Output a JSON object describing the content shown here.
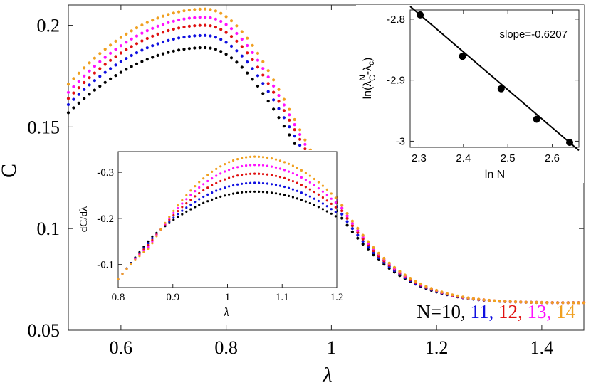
{
  "colors": {
    "N10": "#000000",
    "N11": "#1010e0",
    "N12": "#e01010",
    "N13": "#ff10ff",
    "N14": "#f0a020"
  },
  "chart_data": [
    {
      "id": "main",
      "type": "scatter",
      "xlabel": "λ",
      "ylabel": "C",
      "xlim": [
        0.5,
        1.48
      ],
      "ylim": [
        0.05,
        0.21
      ],
      "xticks": [
        0.6,
        0.8,
        1,
        1.2,
        1.4
      ],
      "xtick_labels": [
        "0.6",
        "0.8",
        "1",
        "1.2",
        "1.4"
      ],
      "yticks": [
        0.05,
        0.1,
        0.15,
        0.2
      ],
      "ytick_labels": [
        "0.05",
        "0.1",
        "0.15",
        "0.2"
      ],
      "legend": {
        "prefix": "N=10,",
        "items": [
          {
            "label": "11,",
            "color": "#1010e0"
          },
          {
            "label": "12,",
            "color": "#e01010"
          },
          {
            "label": "13,",
            "color": "#ff10ff"
          },
          {
            "label": "14",
            "color": "#f0a020"
          }
        ]
      },
      "series": [
        {
          "name": "N=10",
          "color": "#000000",
          "peak_x": 0.76,
          "peak_y": 0.189,
          "start_y": 0.157
        },
        {
          "name": "N=11",
          "color": "#1010e0",
          "peak_x": 0.76,
          "peak_y": 0.195,
          "start_y": 0.161
        },
        {
          "name": "N=12",
          "color": "#e01010",
          "peak_x": 0.76,
          "peak_y": 0.2,
          "start_y": 0.164
        },
        {
          "name": "N=13",
          "color": "#ff10ff",
          "peak_x": 0.76,
          "peak_y": 0.204,
          "start_y": 0.167
        },
        {
          "name": "N=14",
          "color": "#f0a020",
          "peak_x": 0.76,
          "peak_y": 0.208,
          "start_y": 0.171
        }
      ]
    },
    {
      "id": "inset_derivative",
      "type": "scatter",
      "xlabel": "λ",
      "ylabel": "dC/dλ",
      "xlim": [
        0.8,
        1.2
      ],
      "ylim": [
        -0.345,
        -0.05
      ],
      "xticks": [
        0.8,
        0.9,
        1,
        1.1,
        1.2
      ],
      "xtick_labels": [
        "0.8",
        "0.9",
        "1",
        "1.1",
        "1.2"
      ],
      "yticks": [
        -0.1,
        -0.2,
        -0.3
      ],
      "ytick_labels": [
        "-0.1",
        "-0.2",
        "-0.3"
      ],
      "series": [
        {
          "name": "N=10",
          "color": "#000000",
          "min_x": 1.05,
          "min_y": -0.258,
          "end_y": -0.203
        },
        {
          "name": "N=11",
          "color": "#1010e0",
          "min_x": 1.05,
          "min_y": -0.277,
          "end_y": -0.212
        },
        {
          "name": "N=12",
          "color": "#e01010",
          "min_x": 1.05,
          "min_y": -0.297,
          "end_y": -0.222
        },
        {
          "name": "N=13",
          "color": "#ff10ff",
          "min_x": 1.05,
          "min_y": -0.316,
          "end_y": -0.232
        },
        {
          "name": "N=14",
          "color": "#f0a020",
          "min_x": 1.05,
          "min_y": -0.334,
          "end_y": -0.242
        }
      ]
    },
    {
      "id": "inset_scaling",
      "type": "scatter",
      "xlabel": "ln N",
      "ylabel_main": "ln(λ",
      "ylabel_sup": "N",
      "ylabel_sub": "C",
      "ylabel_mid": "-λ",
      "ylabel_sub2": "c",
      "ylabel_close": ")",
      "annotation": "slope=-0.6207",
      "xlim": [
        2.28,
        2.66
      ],
      "ylim": [
        -3.01,
        -2.785
      ],
      "xticks": [
        2.3,
        2.4,
        2.5,
        2.6
      ],
      "xtick_labels": [
        "2.3",
        "2.4",
        "2.5",
        "2.6"
      ],
      "yticks": [
        -2.8,
        -2.9,
        -3.0
      ],
      "ytick_labels": [
        "-2.8",
        "-2.9",
        "-3"
      ],
      "x": [
        2.3026,
        2.3979,
        2.4849,
        2.5649,
        2.6391
      ],
      "y": [
        -2.793,
        -2.861,
        -2.914,
        -2.964,
        -3.002
      ],
      "fit_slope": -0.6207,
      "fit_intercept": -1.364
    }
  ]
}
